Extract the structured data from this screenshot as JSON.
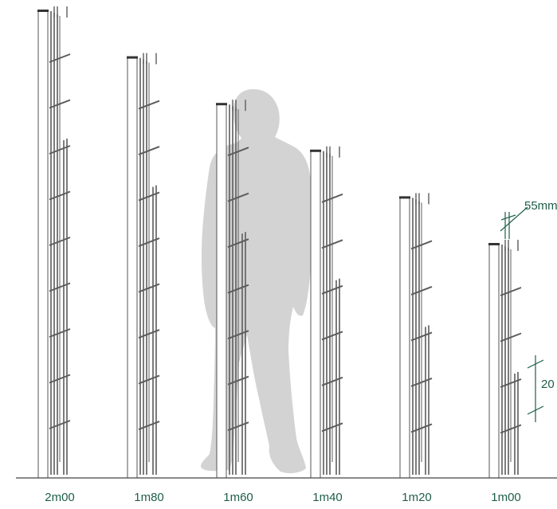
{
  "colors": {
    "post_fill": "#ffffff",
    "post_stroke": "#555555",
    "post_cap": "#333333",
    "wire": "#5c5c5c",
    "silhouette": "#d3d3d3",
    "ground": "#444444",
    "label": "#1e5e4a",
    "dimension": "#1e5e4a"
  },
  "fences": [
    {
      "label": "2m00",
      "height_m": 2.0
    },
    {
      "label": "1m80",
      "height_m": 1.8
    },
    {
      "label": "1m60",
      "height_m": 1.6
    },
    {
      "label": "1m40",
      "height_m": 1.4
    },
    {
      "label": "1m20",
      "height_m": 1.2
    },
    {
      "label": "1m00",
      "height_m": 1.0
    }
  ],
  "dimensions": {
    "wire_gap_label": "55mm",
    "mesh_height_label": "20"
  },
  "figure": "person-silhouette"
}
